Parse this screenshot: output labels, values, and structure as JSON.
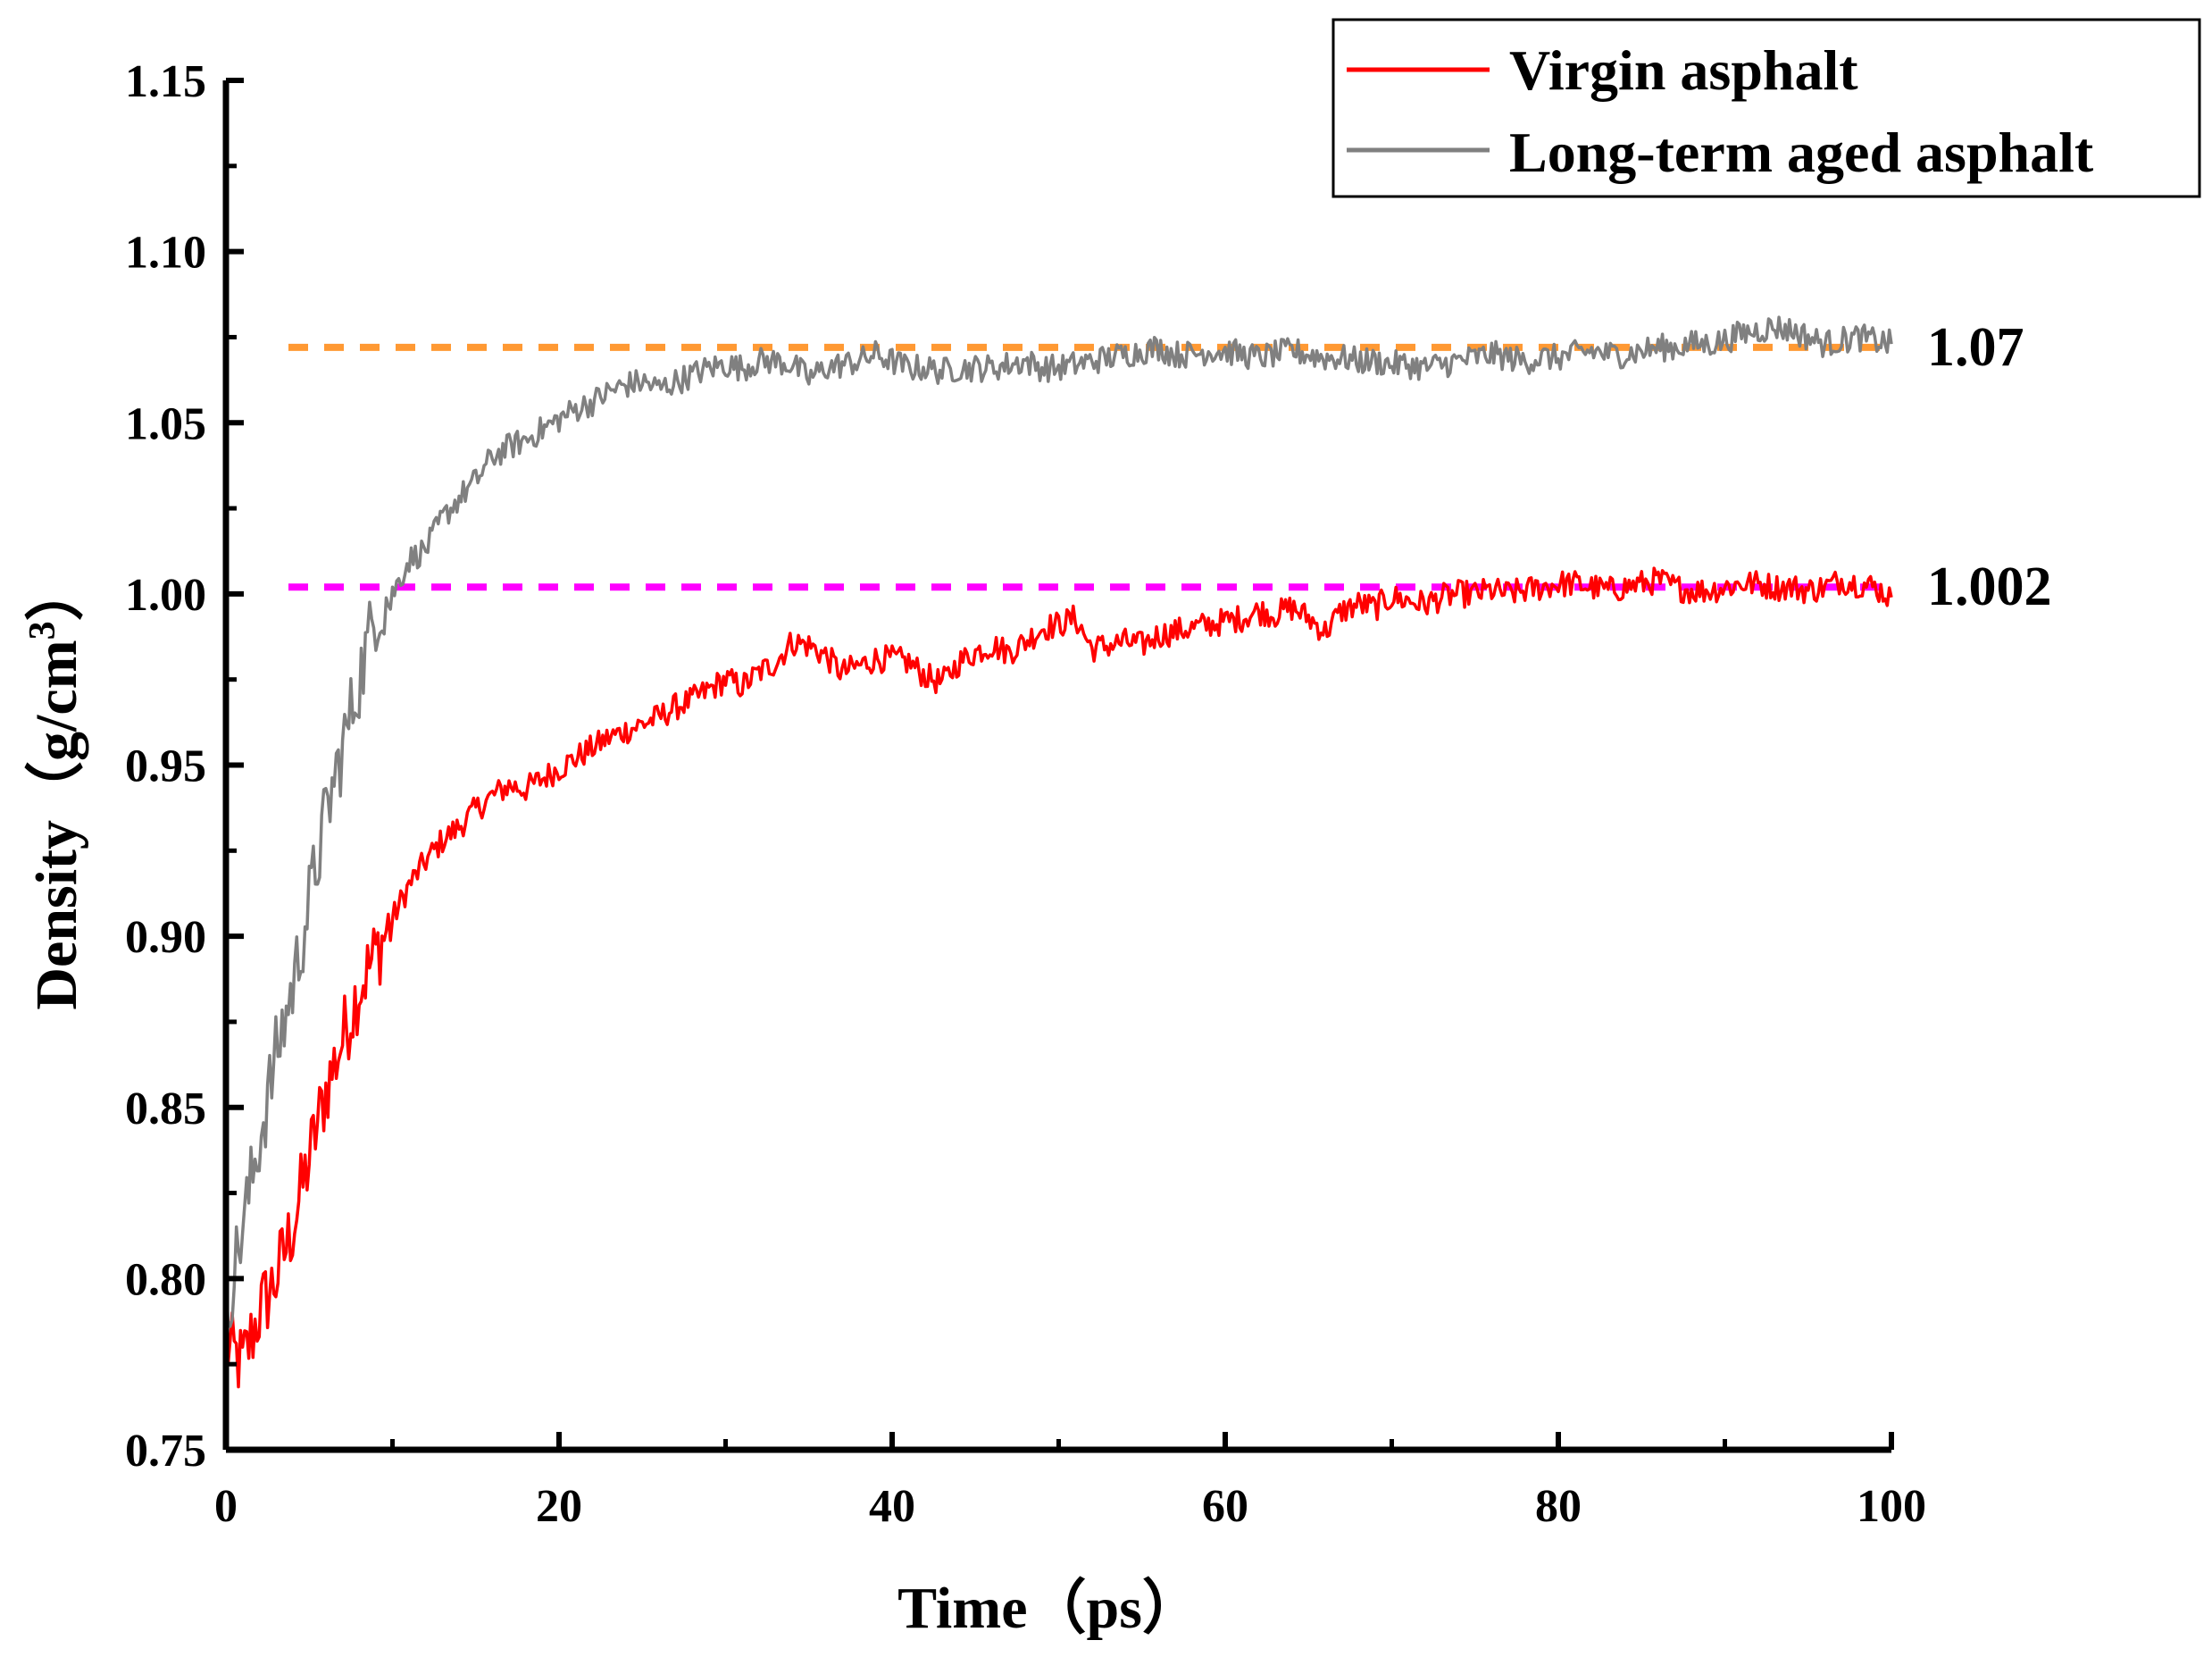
{
  "chart_data": {
    "type": "line",
    "title": "",
    "xlabel": "Time（ps）",
    "ylabel": "Density（g/cm",
    "ylabel_superscript": "3",
    "ylabel_suffix": "）",
    "xlim": [
      0,
      100
    ],
    "ylim": [
      0.75,
      1.15
    ],
    "x_ticks": [
      "0",
      "20",
      "40",
      "60",
      "80",
      "100"
    ],
    "y_ticks": [
      "0.75",
      "0.80",
      "0.85",
      "0.90",
      "0.95",
      "1.00",
      "1.05",
      "1.10",
      "1.15"
    ],
    "grid": false,
    "legend_position": "top-right",
    "series": [
      {
        "name": "Virgin asphalt",
        "color": "#ff0000",
        "x": [
          0,
          1,
          2,
          3,
          4,
          5,
          6,
          7,
          8,
          9,
          10,
          11,
          12,
          13,
          14,
          15,
          16,
          17,
          18,
          19,
          20,
          21,
          22,
          23,
          24,
          25,
          26,
          27,
          28,
          29,
          30,
          31,
          32,
          33,
          34,
          35,
          36,
          37,
          38,
          39,
          40,
          41,
          42,
          43,
          44,
          45,
          46,
          47,
          48,
          49,
          50,
          51,
          52,
          53,
          54,
          55,
          56,
          57,
          58,
          59,
          60,
          61,
          62,
          63,
          64,
          65,
          66,
          67,
          68,
          69,
          70,
          71,
          72,
          73,
          74,
          75,
          76,
          77,
          78,
          79,
          80,
          81,
          82,
          83,
          84,
          85,
          86,
          87,
          88,
          89,
          90,
          91,
          92,
          93,
          94,
          95,
          96,
          97,
          98,
          99,
          100
        ],
        "values": [
          0.78,
          0.775,
          0.79,
          0.8,
          0.815,
          0.835,
          0.855,
          0.87,
          0.885,
          0.895,
          0.905,
          0.915,
          0.922,
          0.928,
          0.932,
          0.937,
          0.941,
          0.944,
          0.943,
          0.946,
          0.949,
          0.952,
          0.955,
          0.958,
          0.96,
          0.962,
          0.964,
          0.967,
          0.969,
          0.972,
          0.975,
          0.973,
          0.977,
          0.98,
          0.986,
          0.985,
          0.982,
          0.977,
          0.979,
          0.981,
          0.981,
          0.98,
          0.976,
          0.974,
          0.98,
          0.983,
          0.985,
          0.983,
          0.986,
          0.99,
          0.991,
          0.993,
          0.984,
          0.985,
          0.986,
          0.985,
          0.988,
          0.989,
          0.99,
          0.991,
          0.992,
          0.993,
          0.995,
          0.994,
          0.996,
          0.993,
          0.989,
          0.995,
          0.997,
          0.996,
          0.999,
          0.998,
          0.997,
          0.999,
          1.0,
          1.0,
          1.001,
          1.0,
          1.001,
          1.002,
          1.003,
          1.003,
          1.002,
          1.001,
          1.002,
          1.003,
          1.004,
          1.002,
          1.001,
          1.001,
          1.002,
          1.003,
          1.003,
          1.002,
          1.002,
          1.001,
          1.002,
          1.004,
          1.003,
          1.002,
          0.999
        ]
      },
      {
        "name": "Long-term aged asphalt",
        "color": "#808080",
        "x": [
          0,
          1,
          2,
          3,
          4,
          5,
          6,
          7,
          8,
          9,
          10,
          11,
          12,
          13,
          14,
          15,
          16,
          17,
          18,
          19,
          20,
          21,
          22,
          23,
          24,
          25,
          26,
          27,
          28,
          29,
          30,
          31,
          32,
          33,
          34,
          35,
          36,
          37,
          38,
          39,
          40,
          41,
          42,
          43,
          44,
          45,
          46,
          47,
          48,
          49,
          50,
          51,
          52,
          53,
          54,
          55,
          56,
          57,
          58,
          59,
          60,
          61,
          62,
          63,
          64,
          65,
          66,
          67,
          68,
          69,
          70,
          71,
          72,
          73,
          74,
          75,
          76,
          77,
          78,
          79,
          80,
          81,
          82,
          83,
          84,
          85,
          86,
          87,
          88,
          89,
          90,
          91,
          92,
          93,
          94,
          95,
          96,
          97,
          98,
          99,
          100
        ],
        "values": [
          0.79,
          0.815,
          0.84,
          0.865,
          0.885,
          0.91,
          0.935,
          0.955,
          0.975,
          0.995,
          1.0,
          1.01,
          1.013,
          1.022,
          1.028,
          1.033,
          1.04,
          1.043,
          1.045,
          1.048,
          1.051,
          1.054,
          1.056,
          1.059,
          1.061,
          1.062,
          1.06,
          1.062,
          1.064,
          1.066,
          1.067,
          1.066,
          1.068,
          1.068,
          1.067,
          1.063,
          1.066,
          1.067,
          1.068,
          1.07,
          1.068,
          1.066,
          1.066,
          1.065,
          1.066,
          1.066,
          1.066,
          1.067,
          1.068,
          1.066,
          1.066,
          1.067,
          1.068,
          1.069,
          1.07,
          1.071,
          1.072,
          1.07,
          1.07,
          1.071,
          1.071,
          1.07,
          1.069,
          1.07,
          1.071,
          1.07,
          1.069,
          1.069,
          1.068,
          1.068,
          1.067,
          1.067,
          1.066,
          1.067,
          1.068,
          1.069,
          1.07,
          1.069,
          1.068,
          1.069,
          1.069,
          1.07,
          1.071,
          1.07,
          1.07,
          1.071,
          1.072,
          1.072,
          1.073,
          1.073,
          1.074,
          1.076,
          1.077,
          1.078,
          1.077,
          1.075,
          1.073,
          1.074,
          1.075,
          1.074,
          1.073
        ]
      }
    ],
    "reference_lines": [
      {
        "y": 1.072,
        "label": "1.07",
        "color": "#ff9933"
      },
      {
        "y": 1.002,
        "label": "1.002",
        "color": "#ff00ff"
      }
    ]
  }
}
